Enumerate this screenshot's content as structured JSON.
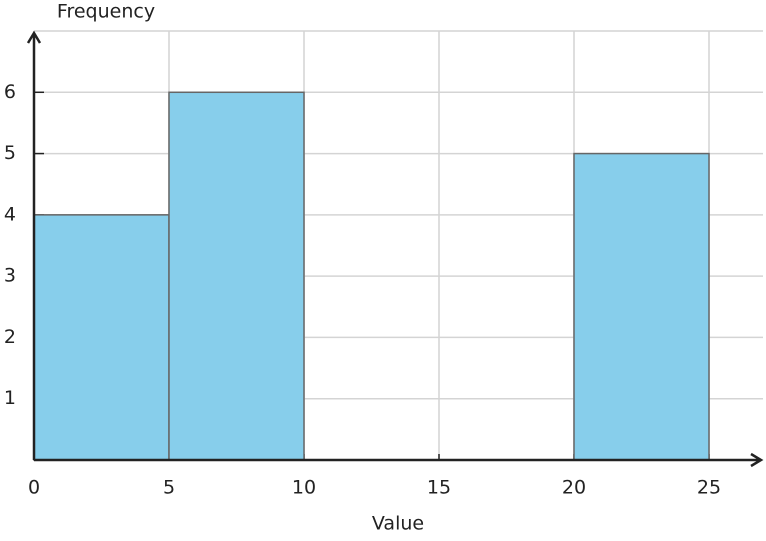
{
  "chart_data": {
    "type": "histogram",
    "x_label": "Value",
    "y_label": "Frequency",
    "bins": [
      0,
      5,
      10,
      15,
      20,
      25
    ],
    "values": [
      4,
      6,
      0,
      0,
      5
    ],
    "color": "#87ceeb",
    "xlim": [
      0,
      27
    ],
    "ylim": [
      0,
      7
    ],
    "xticks": [
      0,
      5,
      10,
      15,
      20,
      25
    ],
    "yticks": [
      1,
      2,
      3,
      4,
      5,
      6
    ],
    "grid": true
  }
}
